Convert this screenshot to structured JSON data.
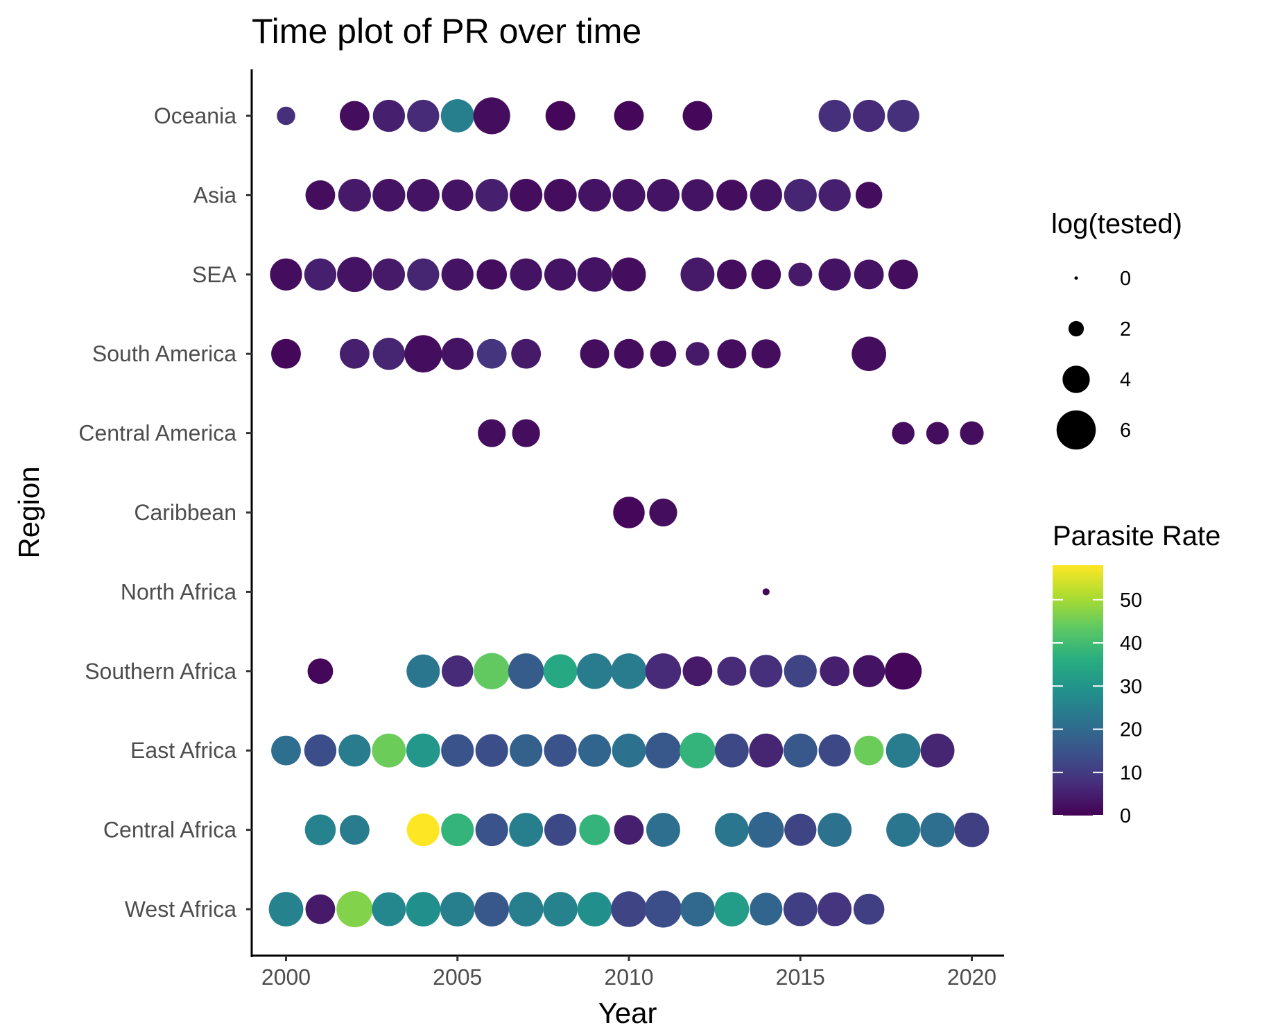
{
  "chart_data": {
    "type": "scatter",
    "title": "Time plot of PR over time",
    "xlabel": "Year",
    "ylabel": "Region",
    "xlim": [
      1999.6,
      2021
    ],
    "x_ticks": [
      2000,
      2005,
      2010,
      2015,
      2020
    ],
    "regions": [
      "West Africa",
      "Central Africa",
      "East Africa",
      "Southern Africa",
      "North Africa",
      "Caribbean",
      "Central America",
      "South America",
      "SEA",
      "Asia",
      "Oceania"
    ],
    "grid": false,
    "legend_position": "right",
    "size_legend": {
      "title": "log(tested)",
      "values": [
        0,
        2,
        4,
        6
      ]
    },
    "color_legend": {
      "title": "Parasite Rate",
      "range": [
        0,
        58
      ],
      "ticks": [
        0,
        10,
        20,
        30,
        40,
        50
      ],
      "colormap": "viridis"
    },
    "series": [
      {
        "region": "Oceania",
        "points": [
          [
            2000,
            2.5,
            8
          ],
          [
            2002,
            4.4,
            2
          ],
          [
            2003,
            4.8,
            5
          ],
          [
            2004,
            4.8,
            7
          ],
          [
            2005,
            5.0,
            25
          ],
          [
            2006,
            5.6,
            2
          ],
          [
            2008,
            4.4,
            1
          ],
          [
            2010,
            4.4,
            1
          ],
          [
            2012,
            4.4,
            1
          ],
          [
            2016,
            4.8,
            8
          ],
          [
            2017,
            4.8,
            7
          ],
          [
            2018,
            4.8,
            8
          ]
        ]
      },
      {
        "region": "Asia",
        "points": [
          [
            2001,
            4.4,
            2
          ],
          [
            2002,
            4.9,
            4
          ],
          [
            2003,
            4.9,
            3
          ],
          [
            2004,
            4.9,
            3
          ],
          [
            2005,
            4.7,
            3
          ],
          [
            2006,
            4.9,
            5
          ],
          [
            2007,
            4.9,
            2
          ],
          [
            2008,
            4.9,
            2
          ],
          [
            2009,
            4.9,
            3
          ],
          [
            2010,
            4.9,
            3
          ],
          [
            2011,
            4.9,
            3
          ],
          [
            2012,
            4.8,
            3
          ],
          [
            2013,
            4.6,
            2
          ],
          [
            2014,
            4.8,
            3
          ],
          [
            2015,
            4.9,
            6
          ],
          [
            2016,
            4.8,
            5
          ],
          [
            2017,
            3.9,
            2
          ]
        ]
      },
      {
        "region": "SEA",
        "points": [
          [
            2000,
            4.8,
            2
          ],
          [
            2001,
            4.8,
            5
          ],
          [
            2002,
            5.3,
            3
          ],
          [
            2003,
            4.8,
            4
          ],
          [
            2004,
            4.8,
            6
          ],
          [
            2005,
            4.8,
            3
          ],
          [
            2006,
            4.5,
            2
          ],
          [
            2007,
            4.8,
            3
          ],
          [
            2008,
            4.8,
            3
          ],
          [
            2009,
            5.2,
            3
          ],
          [
            2010,
            5.1,
            2
          ],
          [
            2012,
            5.1,
            4
          ],
          [
            2013,
            4.4,
            2
          ],
          [
            2014,
            4.4,
            2
          ],
          [
            2015,
            3.4,
            4
          ],
          [
            2016,
            4.8,
            3
          ],
          [
            2017,
            4.4,
            3
          ],
          [
            2018,
            4.4,
            2
          ]
        ]
      },
      {
        "region": "South America",
        "points": [
          [
            2000,
            4.4,
            1
          ],
          [
            2002,
            4.4,
            5
          ],
          [
            2003,
            4.8,
            6
          ],
          [
            2004,
            5.7,
            2
          ],
          [
            2005,
            4.8,
            3
          ],
          [
            2006,
            4.4,
            9
          ],
          [
            2007,
            4.4,
            4
          ],
          [
            2009,
            4.3,
            2
          ],
          [
            2010,
            4.4,
            2
          ],
          [
            2011,
            3.8,
            2
          ],
          [
            2012,
            3.4,
            4
          ],
          [
            2013,
            4.3,
            2
          ],
          [
            2014,
            4.3,
            2
          ],
          [
            2017,
            5.2,
            2
          ]
        ]
      },
      {
        "region": "Central America",
        "points": [
          [
            2006,
            4.1,
            2
          ],
          [
            2007,
            4.1,
            2
          ],
          [
            2018,
            3.2,
            2
          ],
          [
            2019,
            3.2,
            2
          ],
          [
            2020,
            3.4,
            2
          ]
        ]
      },
      {
        "region": "Caribbean",
        "points": [
          [
            2010,
            4.7,
            1
          ],
          [
            2011,
            4.1,
            2
          ]
        ]
      },
      {
        "region": "North Africa",
        "points": [
          [
            2014,
            0.6,
            1
          ]
        ]
      },
      {
        "region": "Southern Africa",
        "points": [
          [
            2001,
            3.7,
            1
          ],
          [
            2004,
            5.0,
            23
          ],
          [
            2005,
            4.7,
            7
          ],
          [
            2006,
            5.5,
            44
          ],
          [
            2007,
            5.4,
            17
          ],
          [
            2008,
            5.1,
            35
          ],
          [
            2009,
            5.4,
            24
          ],
          [
            2010,
            5.4,
            24
          ],
          [
            2011,
            5.4,
            7
          ],
          [
            2012,
            4.4,
            4
          ],
          [
            2013,
            4.3,
            7
          ],
          [
            2014,
            4.9,
            8
          ],
          [
            2015,
            4.9,
            12
          ],
          [
            2016,
            4.4,
            5
          ],
          [
            2017,
            4.8,
            3
          ],
          [
            2018,
            5.6,
            1
          ]
        ]
      },
      {
        "region": "East Africa",
        "points": [
          [
            2000,
            4.4,
            21
          ],
          [
            2001,
            4.8,
            14
          ],
          [
            2002,
            4.8,
            24
          ],
          [
            2003,
            5.1,
            45
          ],
          [
            2004,
            5.1,
            31
          ],
          [
            2005,
            4.9,
            15
          ],
          [
            2006,
            4.9,
            14
          ],
          [
            2007,
            4.9,
            18
          ],
          [
            2008,
            4.9,
            15
          ],
          [
            2009,
            4.9,
            19
          ],
          [
            2010,
            5.1,
            22
          ],
          [
            2011,
            5.4,
            16
          ],
          [
            2012,
            5.4,
            38
          ],
          [
            2013,
            5.1,
            13
          ],
          [
            2014,
            5.1,
            6
          ],
          [
            2015,
            5.1,
            16
          ],
          [
            2016,
            4.8,
            13
          ],
          [
            2017,
            4.4,
            45
          ],
          [
            2018,
            5.2,
            24
          ],
          [
            2019,
            5.1,
            6
          ]
        ]
      },
      {
        "region": "Central Africa",
        "points": [
          [
            2001,
            4.6,
            26
          ],
          [
            2002,
            4.4,
            24
          ],
          [
            2004,
            4.9,
            58
          ],
          [
            2005,
            4.9,
            38
          ],
          [
            2006,
            4.9,
            15
          ],
          [
            2007,
            5.1,
            25
          ],
          [
            2008,
            4.8,
            13
          ],
          [
            2009,
            4.6,
            38
          ],
          [
            2010,
            4.4,
            5
          ],
          [
            2011,
            5.1,
            21
          ],
          [
            2013,
            5.1,
            23
          ],
          [
            2014,
            5.4,
            19
          ],
          [
            2015,
            4.8,
            12
          ],
          [
            2016,
            5.1,
            22
          ],
          [
            2018,
            5.1,
            23
          ],
          [
            2019,
            5.2,
            21
          ],
          [
            2020,
            5.2,
            11
          ]
        ]
      },
      {
        "region": "West Africa",
        "points": [
          [
            2000,
            5.2,
            26
          ],
          [
            2001,
            4.4,
            4
          ],
          [
            2002,
            5.5,
            47
          ],
          [
            2003,
            5.1,
            27
          ],
          [
            2004,
            5.2,
            29
          ],
          [
            2005,
            5.2,
            25
          ],
          [
            2006,
            5.2,
            16
          ],
          [
            2007,
            5.2,
            25
          ],
          [
            2008,
            5.2,
            26
          ],
          [
            2009,
            5.2,
            29
          ],
          [
            2010,
            5.4,
            12
          ],
          [
            2011,
            5.6,
            14
          ],
          [
            2012,
            5.2,
            20
          ],
          [
            2013,
            5.2,
            32
          ],
          [
            2014,
            4.9,
            19
          ],
          [
            2015,
            5.1,
            11
          ],
          [
            2016,
            5.1,
            9
          ],
          [
            2017,
            4.6,
            11
          ]
        ]
      }
    ]
  }
}
